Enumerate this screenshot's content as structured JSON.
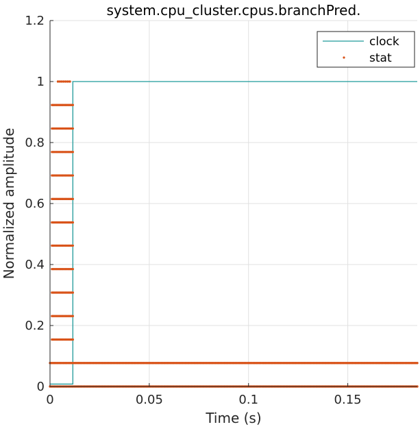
{
  "chart_data": {
    "type": "line",
    "title": "system.cpu_cluster.cpus.branchPred.",
    "xlabel": "Time (s)",
    "ylabel": "Normalized amplitude",
    "xlim": [
      0,
      0.185
    ],
    "ylim": [
      0,
      1.2
    ],
    "xticks": [
      0,
      0.05,
      0.1,
      0.15
    ],
    "xtick_labels": [
      "0",
      "0.05",
      "0.1",
      "0.15"
    ],
    "yticks": [
      0,
      0.2,
      0.4,
      0.6,
      0.8,
      1.0,
      1.2
    ],
    "ytick_labels": [
      "0",
      "0.2",
      "0.4",
      "0.6",
      "0.8",
      "1",
      "1.2"
    ],
    "grid": true,
    "legend_position": "top-right",
    "colors": {
      "clock": "#1f9a9a",
      "stat": "#d95319",
      "grid": "#e0e0e0",
      "axis": "#262626"
    },
    "series": [
      {
        "name": "clock",
        "style": "line",
        "x": [
          0,
          0.0115,
          0.0115,
          0.185
        ],
        "y": [
          0.008,
          0.008,
          1.0,
          1.0
        ]
      },
      {
        "name": "stat",
        "style": "dots",
        "bands": [
          {
            "y": 1.0,
            "x_start": 0.004,
            "x_end": 0.01
          },
          {
            "y": 0.923,
            "x_start": 0.001,
            "x_end": 0.0115
          },
          {
            "y": 0.846,
            "x_start": 0.001,
            "x_end": 0.0115
          },
          {
            "y": 0.769,
            "x_start": 0.001,
            "x_end": 0.0115
          },
          {
            "y": 0.692,
            "x_start": 0.001,
            "x_end": 0.0115
          },
          {
            "y": 0.615,
            "x_start": 0.001,
            "x_end": 0.0115
          },
          {
            "y": 0.538,
            "x_start": 0.001,
            "x_end": 0.0115
          },
          {
            "y": 0.462,
            "x_start": 0.001,
            "x_end": 0.0115
          },
          {
            "y": 0.385,
            "x_start": 0.001,
            "x_end": 0.0115
          },
          {
            "y": 0.308,
            "x_start": 0.001,
            "x_end": 0.0115
          },
          {
            "y": 0.231,
            "x_start": 0.001,
            "x_end": 0.0115
          },
          {
            "y": 0.154,
            "x_start": 0.001,
            "x_end": 0.0115
          },
          {
            "y": 0.077,
            "x_start": 0.0,
            "x_end": 0.185
          },
          {
            "y": 0.0,
            "x_start": 0.0,
            "x_end": 0.185
          }
        ]
      }
    ]
  }
}
